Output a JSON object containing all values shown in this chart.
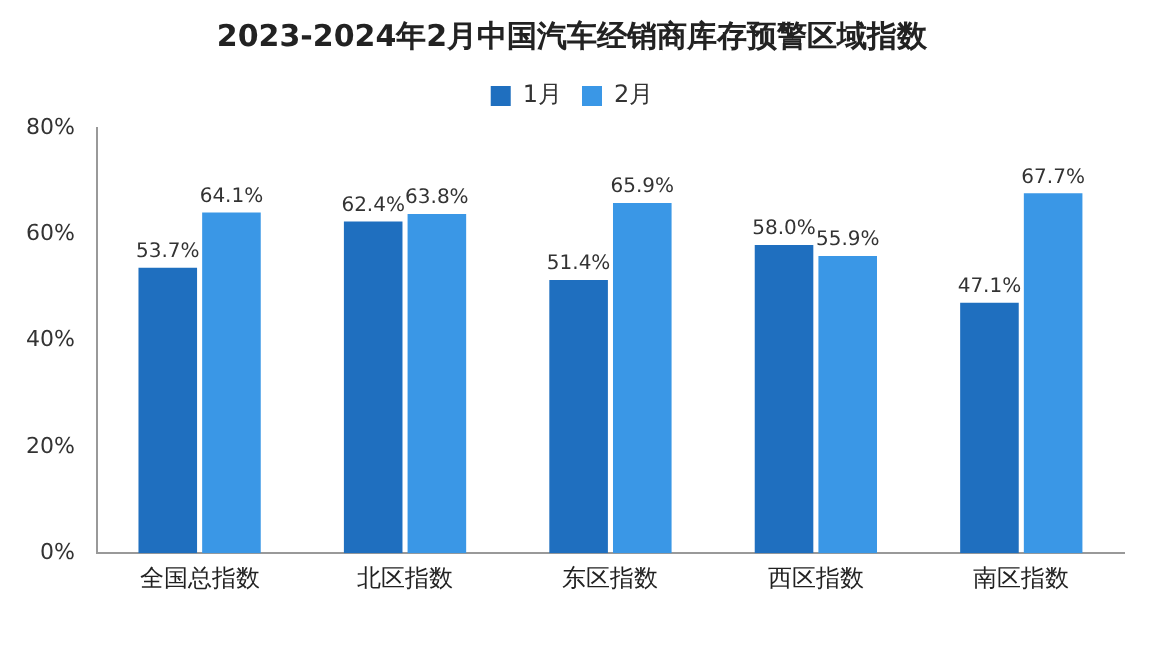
{
  "chart_data": {
    "type": "bar",
    "title": "2023-2024年2月中国汽车经销商库存预警区域指数",
    "categories": [
      "全国总指数",
      "北区指数",
      "东区指数",
      "西区指数",
      "南区指数"
    ],
    "series": [
      {
        "name": "1月",
        "color": "#1f6fbf",
        "values": [
          53.7,
          62.4,
          51.4,
          58.0,
          47.1
        ],
        "value_labels": [
          "53.7%",
          "62.4%",
          "51.4%",
          "58.0%",
          "47.1%"
        ]
      },
      {
        "name": "2月",
        "color": "#3a97e6",
        "values": [
          64.1,
          63.8,
          65.9,
          55.9,
          67.7
        ],
        "value_labels": [
          "64.1%",
          "63.8%",
          "65.9%",
          "55.9%",
          "67.7%"
        ]
      }
    ],
    "ylim": [
      0,
      80
    ],
    "yticks": [
      {
        "value": 0,
        "label": "0%"
      },
      {
        "value": 20,
        "label": "20%"
      },
      {
        "value": 40,
        "label": "40%"
      },
      {
        "value": 60,
        "label": "60%"
      },
      {
        "value": 80,
        "label": "80%"
      }
    ],
    "grid": false,
    "legend": "top"
  }
}
